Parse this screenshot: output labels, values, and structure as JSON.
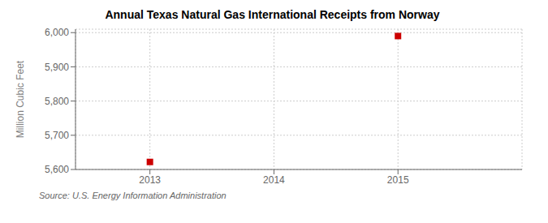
{
  "chart_data": {
    "type": "scatter",
    "title": "Annual Texas Natural Gas International Receipts from Norway",
    "ylabel": "Million Cubic Feet",
    "source": "Source: U.S. Energy Information Administration",
    "x": [
      2013,
      2015
    ],
    "values": [
      5622,
      5990
    ],
    "color": "#cc0000",
    "marker": "square",
    "xlim": [
      2012.4,
      2016.0
    ],
    "ylim": [
      5600,
      6010
    ],
    "xticks": [
      2013,
      2014,
      2015
    ],
    "yticks": [
      {
        "value": 5600,
        "label": "5,600"
      },
      {
        "value": 5700,
        "label": "5,700"
      },
      {
        "value": 5800,
        "label": "5,800"
      },
      {
        "value": 5900,
        "label": "5,900"
      },
      {
        "value": 6000,
        "label": "6,000"
      }
    ],
    "grid": true
  }
}
